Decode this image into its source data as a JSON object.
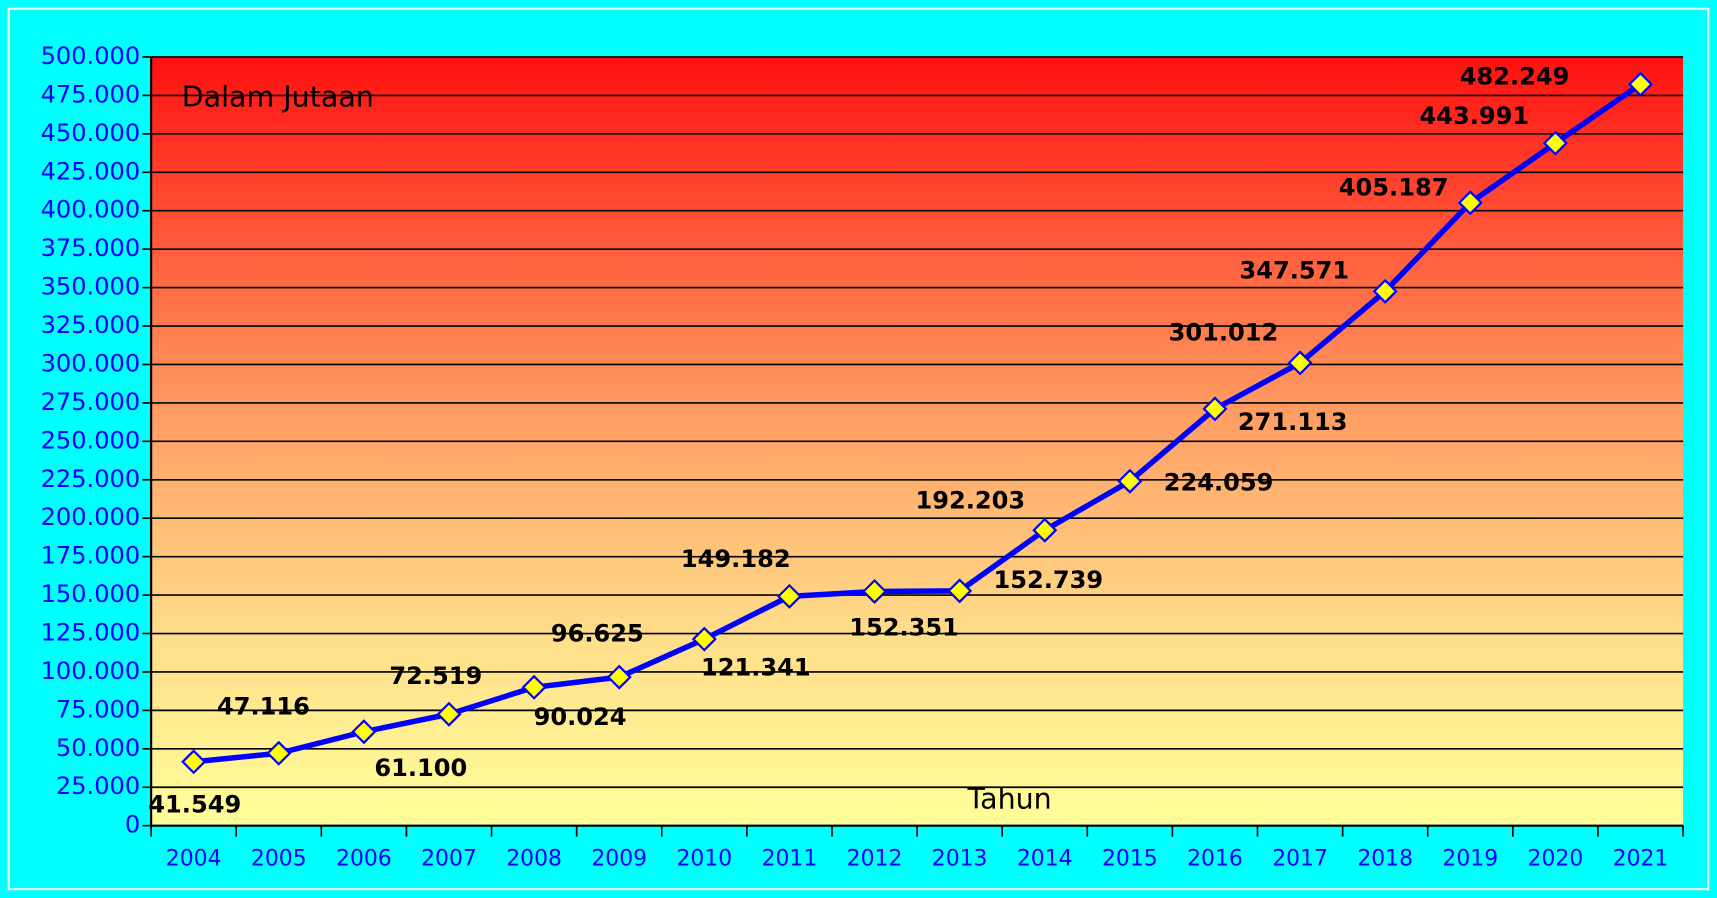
{
  "chart_data": {
    "type": "line",
    "annotation": "Dalam Jutaan",
    "x_label": "Tahun",
    "categories": [
      "2004",
      "2005",
      "2006",
      "2007",
      "2008",
      "2009",
      "2010",
      "2011",
      "2012",
      "2013",
      "2014",
      "2015",
      "2016",
      "2017",
      "2018",
      "2019",
      "2020",
      "2021"
    ],
    "series": [
      {
        "name": "Dalam Jutaan",
        "color": "#0000ff",
        "marker_color": "#ffff00",
        "values": [
          41549,
          47116,
          61100,
          72519,
          90024,
          96625,
          121341,
          149182,
          152351,
          152739,
          192203,
          224059,
          271113,
          301012,
          347571,
          405187,
          443991,
          482249
        ],
        "value_labels": [
          "41.549",
          "47.116",
          "61.100",
          "72.519",
          "90.024",
          "96.625",
          "121.341",
          "149.182",
          "152.351",
          "152.739",
          "192.203",
          "224.059",
          "271.113",
          "301.012",
          "347.571",
          "405.187",
          "443.991",
          "482.249"
        ]
      }
    ],
    "ylim": [
      0,
      500000
    ],
    "yticks": [
      0,
      {
        "value": 25000,
        "label": "25.000"
      },
      {
        "value": 50000,
        "label": "50.000"
      },
      {
        "value": 75000,
        "label": "75.000"
      },
      {
        "value": 100000,
        "label": "100.000"
      },
      {
        "value": 125000,
        "label": "125.000"
      },
      {
        "value": 150000,
        "label": "150.000"
      },
      {
        "value": 175000,
        "label": "175.000"
      },
      {
        "value": 200000,
        "label": "200.000"
      },
      {
        "value": 225000,
        "label": "225.000"
      },
      {
        "value": 250000,
        "label": "250.000"
      },
      {
        "value": 275000,
        "label": "275.000"
      },
      {
        "value": 300000,
        "label": "300.000"
      },
      {
        "value": 325000,
        "label": "325.000"
      },
      {
        "value": 350000,
        "label": "350.000"
      },
      {
        "value": 375000,
        "label": "375.000"
      },
      {
        "value": 400000,
        "label": "400.000"
      },
      {
        "value": 425000,
        "label": "425.000"
      },
      {
        "value": 450000,
        "label": "450.000"
      },
      {
        "value": 475000,
        "label": "475.000"
      },
      {
        "value": 500000,
        "label": "500.000"
      }
    ],
    "grid": true
  }
}
